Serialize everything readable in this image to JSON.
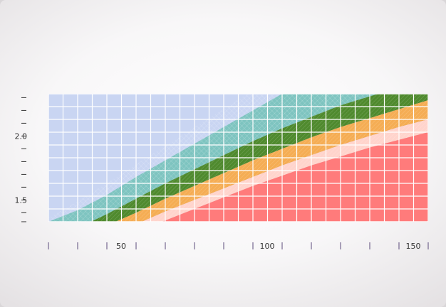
{
  "chart_data": {
    "type": "area",
    "title": "",
    "xlabel": "",
    "ylabel": "",
    "xlim": [
      27,
      157
    ],
    "ylim": [
      1.33,
      2.33
    ],
    "grid": true,
    "x_ticks": [
      27,
      37,
      47,
      57,
      67,
      77,
      87,
      97,
      107,
      117,
      127,
      137,
      147,
      157
    ],
    "x_tick_labels": [
      {
        "value": 47,
        "label": "50"
      },
      {
        "value": 97,
        "label": "100"
      },
      {
        "value": 147,
        "label": "150"
      }
    ],
    "y_ticks": [
      1.4,
      1.5,
      1.6,
      1.7,
      1.8,
      1.9,
      2.0,
      2.1,
      2.2,
      2.3
    ],
    "y_tick_labels": [
      {
        "value": 1.5,
        "label": "1.5"
      },
      {
        "value": 2.0,
        "label": "2.0"
      }
    ],
    "x": [
      27,
      37,
      47,
      57,
      67,
      77,
      87,
      97,
      107,
      117,
      127,
      137,
      147,
      157
    ],
    "boundaries": [
      {
        "band": "light-blue",
        "values": [
          1.36,
          1.49,
          1.63,
          1.78,
          1.92,
          2.07,
          2.21,
          2.36,
          2.49,
          2.6,
          2.7,
          2.8,
          2.89,
          2.98
        ]
      },
      {
        "band": "teal",
        "values": [
          1.33,
          1.42,
          1.54,
          1.68,
          1.81,
          1.94,
          2.07,
          2.2,
          2.33,
          2.45,
          2.56,
          2.66,
          2.76,
          2.85
        ]
      },
      {
        "band": "green",
        "values": [
          1.2,
          1.28,
          1.39,
          1.51,
          1.63,
          1.74,
          1.85,
          1.96,
          2.06,
          2.15,
          2.24,
          2.31,
          2.38,
          2.45
        ]
      },
      {
        "band": "orange",
        "values": [
          1.12,
          1.2,
          1.3,
          1.4,
          1.51,
          1.61,
          1.71,
          1.81,
          1.9,
          1.99,
          2.07,
          2.14,
          2.21,
          2.28
        ]
      },
      {
        "band": "light-pink",
        "values": [
          1.05,
          1.13,
          1.22,
          1.31,
          1.41,
          1.5,
          1.59,
          1.68,
          1.77,
          1.85,
          1.93,
          2.0,
          2.07,
          2.13
        ]
      },
      {
        "band": "pink",
        "values": [
          0.95,
          1.06,
          1.16,
          1.25,
          1.34,
          1.43,
          1.52,
          1.61,
          1.69,
          1.77,
          1.84,
          1.91,
          1.97,
          2.03
        ]
      },
      {
        "band": "red",
        "values": [
          1.33,
          1.33,
          1.33,
          1.33,
          1.33,
          1.33,
          1.33,
          1.33,
          1.33,
          1.33,
          1.33,
          1.33,
          1.33,
          1.33
        ]
      }
    ],
    "band_colors": {
      "light-blue": "#c9d5f2",
      "teal": "#7ec4c0",
      "green": "#4f8a2e",
      "orange": "#f5ad54",
      "light-pink": "#ffd4cc",
      "pink": "#ffb6b0",
      "red": "#ff7b7b"
    }
  }
}
